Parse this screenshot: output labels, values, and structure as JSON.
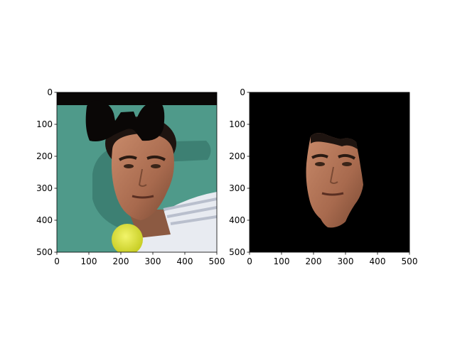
{
  "chart_data": [
    {
      "type": "image",
      "image_description": "Photo of a man's face (tennis player) with dark hair, white shirt, yellow tennis ball in lower left; teal background; black rectangle across top and black bow-like mask over the head",
      "xlim": [
        0,
        500
      ],
      "ylim": [
        500,
        0
      ],
      "xticks": [
        0,
        100,
        200,
        300,
        400,
        500
      ],
      "yticks": [
        0,
        100,
        200,
        300,
        400,
        500
      ],
      "xtick_labels": [
        "0",
        "100",
        "200",
        "300",
        "400",
        "500"
      ],
      "ytick_labels": [
        "0",
        "100",
        "200",
        "300",
        "400",
        "500"
      ],
      "colors": {
        "background": "#4f9a8a",
        "mask": "#0a0706",
        "skin": "#b4795c",
        "hair": "#1e1410",
        "shirt": "#e8ebf1",
        "ball": "#dfe23a"
      }
    },
    {
      "type": "image",
      "image_description": "Segmented face only on a black background",
      "xlim": [
        0,
        500
      ],
      "ylim": [
        500,
        0
      ],
      "xticks": [
        0,
        100,
        200,
        300,
        400,
        500
      ],
      "yticks": [
        0,
        100,
        200,
        300,
        400,
        500
      ],
      "xtick_labels": [
        "0",
        "100",
        "200",
        "300",
        "400",
        "500"
      ],
      "ytick_labels": [
        "0",
        "100",
        "200",
        "300",
        "400",
        "500"
      ],
      "colors": {
        "background": "#000000",
        "skin": "#b4795c"
      }
    }
  ]
}
